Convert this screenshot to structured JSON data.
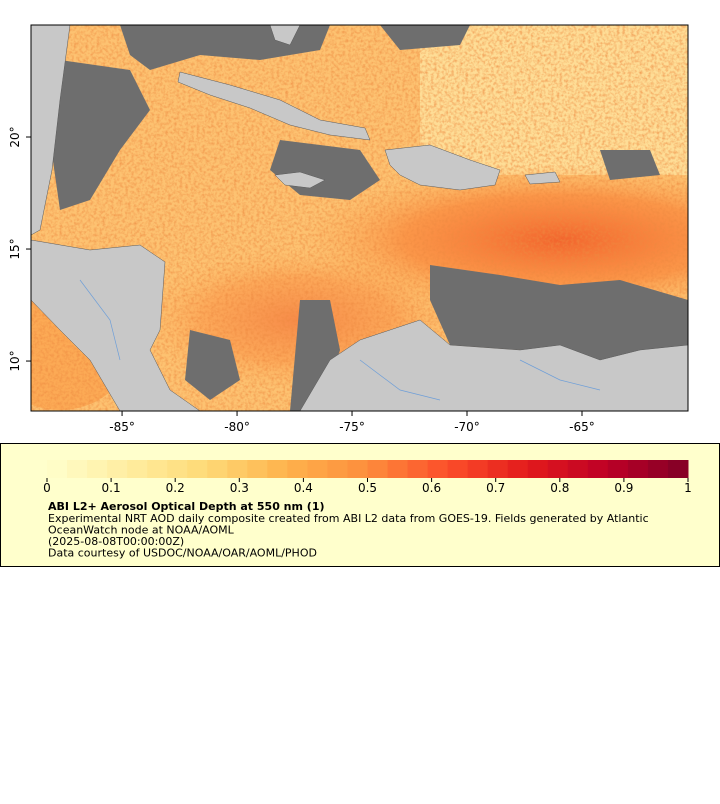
{
  "map": {
    "xlim": [
      -88.96,
      -60.39
    ],
    "ylim": [
      7.77,
      25.0
    ],
    "xticks": [
      {
        "value": -85,
        "label": "-85°"
      },
      {
        "value": -80,
        "label": "-80°"
      },
      {
        "value": -75,
        "label": "-75°"
      },
      {
        "value": -70,
        "label": "-70°"
      },
      {
        "value": -65,
        "label": "-65°"
      }
    ],
    "yticks": [
      {
        "value": 10,
        "label": "10°"
      },
      {
        "value": 15,
        "label": "15°"
      },
      {
        "value": 20,
        "label": "20°"
      }
    ]
  },
  "colorbar": {
    "range": [
      0,
      1
    ],
    "ticks": [
      0,
      0.1,
      0.2,
      0.3,
      0.4,
      0.5,
      0.6,
      0.7,
      0.8,
      0.9,
      1
    ],
    "levels": 32,
    "colormap": [
      "#ffffcc",
      "#ffeda0",
      "#fed976",
      "#feb24c",
      "#fd8d3c",
      "#fc4e2a",
      "#e31a1c",
      "#bd0026",
      "#800026"
    ],
    "title": "ABI L2+ Aerosol Optical Depth at 550 nm (1)",
    "description": [
      "Experimental NRT AOD daily composite created from ABI L2 data from GOES-19. Fields generated by Atlantic",
      "OceanWatch node at NOAA/AOML",
      "(2025-08-08T00:00:00Z)",
      "Data courtesy of USDOC/NOAA/OAR/AOML/PHOD"
    ]
  }
}
